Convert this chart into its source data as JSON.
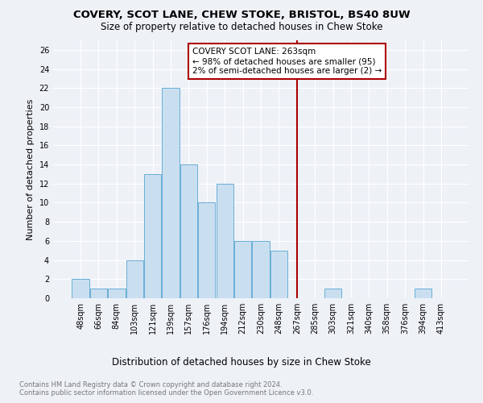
{
  "title": "COVERY, SCOT LANE, CHEW STOKE, BRISTOL, BS40 8UW",
  "subtitle": "Size of property relative to detached houses in Chew Stoke",
  "xlabel": "Distribution of detached houses by size in Chew Stoke",
  "ylabel": "Number of detached properties",
  "footer": "Contains HM Land Registry data © Crown copyright and database right 2024.\nContains public sector information licensed under the Open Government Licence v3.0.",
  "bin_labels": [
    "48sqm",
    "66sqm",
    "84sqm",
    "103sqm",
    "121sqm",
    "139sqm",
    "157sqm",
    "176sqm",
    "194sqm",
    "212sqm",
    "230sqm",
    "248sqm",
    "267sqm",
    "285sqm",
    "303sqm",
    "321sqm",
    "340sqm",
    "358sqm",
    "376sqm",
    "394sqm",
    "413sqm"
  ],
  "bar_values": [
    2,
    1,
    1,
    4,
    13,
    22,
    14,
    10,
    12,
    6,
    6,
    5,
    0,
    0,
    1,
    0,
    0,
    0,
    0,
    1,
    0
  ],
  "bar_color": "#c9dff0",
  "bar_edge_color": "#6aaed6",
  "property_line_x": 12.0,
  "property_line_label": "COVERY SCOT LANE: 263sqm",
  "annotation_line1": "← 98% of detached houses are smaller (95)",
  "annotation_line2": "2% of semi-detached houses are larger (2) →",
  "annotation_box_color": "#ffffff",
  "annotation_box_edge": "#aa0000",
  "vline_color": "#aa0000",
  "ytick_values": [
    0,
    2,
    4,
    6,
    8,
    10,
    12,
    14,
    16,
    18,
    20,
    22,
    24,
    26
  ],
  "ylim": [
    0,
    27
  ],
  "background_color": "#eef2f7",
  "grid_color": "#ffffff",
  "title_fontsize": 9.5,
  "subtitle_fontsize": 8.5,
  "ylabel_fontsize": 8,
  "xlabel_fontsize": 8.5,
  "tick_fontsize": 7,
  "footer_fontsize": 6,
  "ann_fontsize": 7.5
}
